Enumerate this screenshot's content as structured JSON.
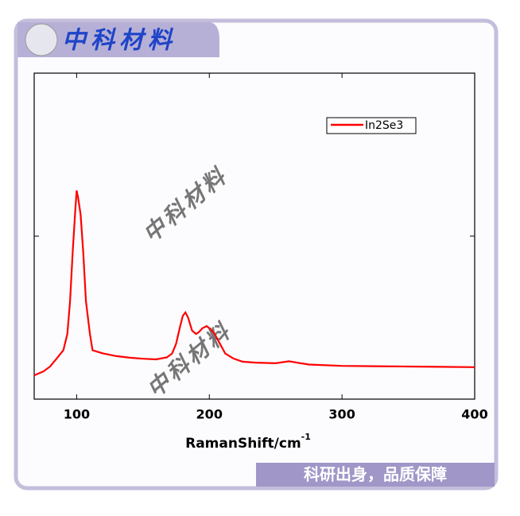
{
  "brand": {
    "header": "中科材料",
    "slogan": "科研出身，品质保障",
    "watermarks": [
      "中科材料",
      "中科材料"
    ]
  },
  "chart_data": {
    "type": "line",
    "xlabel": {
      "text": "RamanShift/cm",
      "superscript": "-1"
    },
    "xlim": [
      68,
      400
    ],
    "xticks": [
      100,
      200,
      300,
      400
    ],
    "ylim": [
      0,
      100
    ],
    "yticks": [
      50
    ],
    "legend": "upper right",
    "series": [
      {
        "name": "In2Se3",
        "color": "#ff0000",
        "x": [
          68,
          75,
          80,
          85,
          90,
          93,
          95,
          97,
          99,
          100,
          101,
          103,
          105,
          107,
          110,
          112,
          116,
          120,
          130,
          140,
          150,
          160,
          168,
          172,
          175,
          178,
          180,
          182,
          184,
          187,
          190,
          192,
          195,
          198,
          201,
          204,
          208,
          212,
          218,
          225,
          235,
          250,
          260,
          275,
          300,
          325,
          350,
          375,
          400
        ],
        "values": [
          7.3,
          8.5,
          10,
          12.5,
          15,
          20,
          30,
          45,
          58,
          64,
          62,
          56.6,
          45,
          30,
          20,
          15,
          14.5,
          14,
          13.2,
          12.7,
          12.4,
          12.2,
          12.8,
          14,
          17,
          22.4,
          25.5,
          26.6,
          25,
          21,
          20,
          20.5,
          21.8,
          22.4,
          21.5,
          20,
          17,
          14,
          12.5,
          11.5,
          11.2,
          11,
          11.6,
          10.6,
          10.2,
          10.1,
          10,
          9.9,
          9.8
        ]
      }
    ]
  }
}
